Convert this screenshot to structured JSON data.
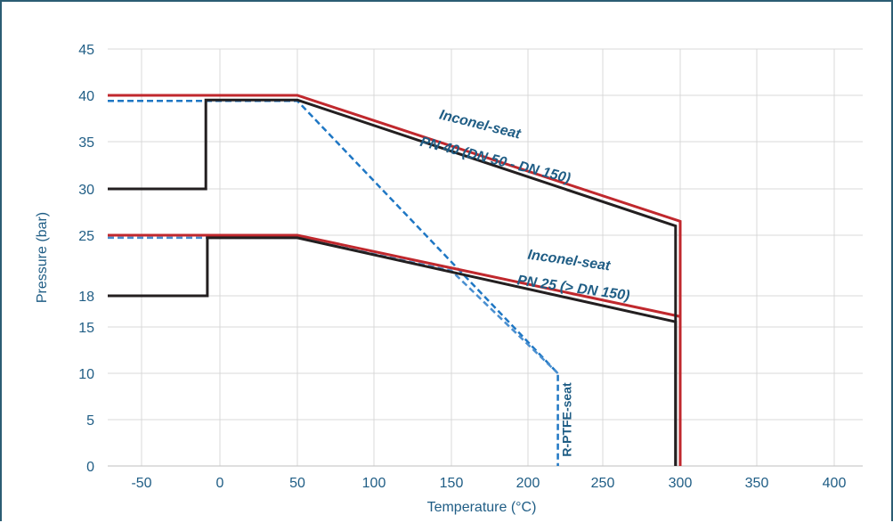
{
  "chart_data": {
    "type": "line",
    "xlabel": "Temperature (°C)",
    "ylabel": "Pressure (bar)",
    "xlim": [
      -75,
      420
    ],
    "ylim": [
      0,
      45
    ],
    "x_ticks": [
      -50,
      0,
      50,
      100,
      150,
      200,
      250,
      300,
      350,
      400
    ],
    "y_ticks": [
      0,
      5,
      10,
      15,
      18,
      25,
      30,
      35,
      40,
      45
    ],
    "grid": true,
    "colors": {
      "red": "#c0282d",
      "black": "#231f20",
      "blue_dashed": "#1f77c4",
      "blue_dashed_light": "#4a8fd0",
      "text": "#1f5d85",
      "grid": "#d9d9d9",
      "frame": "#2b5d73"
    },
    "series": [
      {
        "style": "red",
        "x": [
          -75,
          50,
          300,
          300
        ],
        "y": [
          40,
          40,
          26.5,
          0
        ]
      },
      {
        "style": "black",
        "x": [
          -75,
          -9,
          -9,
          50,
          297,
          297
        ],
        "y": [
          30,
          30,
          39.5,
          39.5,
          26,
          0
        ]
      },
      {
        "style": "red",
        "x": [
          -75,
          50,
          300,
          300
        ],
        "y": [
          25,
          25,
          16,
          0
        ]
      },
      {
        "style": "black",
        "x": [
          -75,
          -8,
          -8,
          50,
          297,
          297
        ],
        "y": [
          18,
          18,
          24.7,
          24.7,
          15.5,
          0
        ]
      },
      {
        "style": "blue_dashed",
        "x": [
          -75,
          50,
          220,
          220
        ],
        "y": [
          39.4,
          39.4,
          10,
          0
        ]
      },
      {
        "style": "blue_dashed_light",
        "x": [
          -75,
          50,
          150,
          220
        ],
        "y": [
          24.7,
          24.7,
          20.9,
          10
        ]
      }
    ],
    "annotations": [
      {
        "text": "Inconel-seat",
        "x": 168,
        "y": 36.4,
        "rotate": 14
      },
      {
        "text": "PN 40 (DN 50 - DN 150)",
        "x": 178,
        "y": 32.6,
        "rotate": 14
      },
      {
        "text": "Inconel-seat",
        "x": 227,
        "y": 21.6,
        "rotate": 8
      },
      {
        "text": "PN 25 (> DN 150)",
        "x": 230,
        "y": 18.4,
        "rotate": 8
      },
      {
        "text": "R-PTFE-seat",
        "x": 229,
        "y": 5,
        "rotate": -90
      }
    ]
  }
}
